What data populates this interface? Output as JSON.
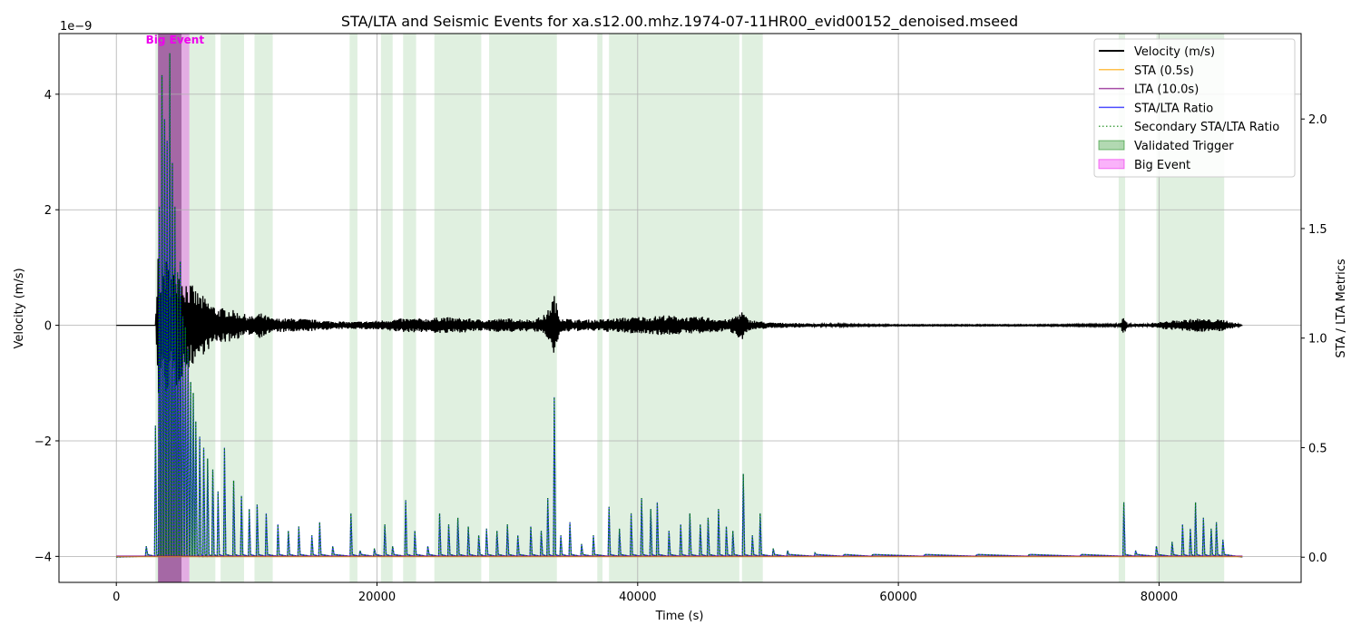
{
  "chart_data": {
    "type": "line",
    "title": "STA/LTA and Seismic Events for xa.s12.00.mhz.1974-07-11HR00_evid00152_denoised.mseed",
    "xlabel": "Time (s)",
    "ylabel_left": "Velocity (m/s)",
    "ylabel_right": "STA / LTA Metrics",
    "left_axis_multiplier": "1e−9",
    "xlim": [
      -4400,
      90900
    ],
    "ylim_left": [
      -4.45,
      5.05
    ],
    "ylim_right": [
      -0.115,
      2.39
    ],
    "x_ticks": [
      0,
      20000,
      40000,
      60000,
      80000
    ],
    "x_tick_labels": [
      "0",
      "20000",
      "40000",
      "60000",
      "80000"
    ],
    "y_ticks_left": [
      -4,
      -2,
      0,
      2,
      4
    ],
    "y_tick_labels_left": [
      "−4",
      "−2",
      "0",
      "2",
      "4"
    ],
    "y_ticks_right": [
      0.0,
      0.5,
      1.0,
      1.5,
      2.0
    ],
    "y_tick_labels_right": [
      "0.0",
      "0.5",
      "1.0",
      "1.5",
      "2.0"
    ],
    "grid": true,
    "legend_position": "top-right",
    "annotation": {
      "text": "Big Event",
      "x": 4500,
      "color": "#ee00ee"
    },
    "series": [
      {
        "name": "Velocity (m/s)",
        "color": "#000000",
        "style": "solid",
        "axis": "left"
      },
      {
        "name": "STA (0.5s)",
        "color": "#ffa500",
        "style": "solid",
        "axis": "right"
      },
      {
        "name": "LTA (10.0s)",
        "color": "#800080",
        "style": "solid",
        "axis": "right"
      },
      {
        "name": "STA/LTA Ratio",
        "color": "#0000ff",
        "style": "solid",
        "axis": "right"
      },
      {
        "name": "Secondary STA/LTA Ratio",
        "color": "#008000",
        "style": "dotted",
        "axis": "right"
      },
      {
        "name": "Validated Trigger",
        "color": "#008000",
        "style": "fill",
        "axis": "right"
      },
      {
        "name": "Big Event",
        "color": "#ee00ee",
        "style": "fill",
        "axis": "right"
      }
    ],
    "velocity_envelope": {
      "x": [
        0,
        3000,
        3200,
        3500,
        3800,
        4200,
        4600,
        5000,
        5400,
        5800,
        6200,
        6700,
        7200,
        7800,
        8500,
        9500,
        10500,
        11000,
        12000,
        14000,
        16000,
        18000,
        20000,
        22000,
        24000,
        25000,
        26000,
        27000,
        28000,
        30000,
        32000,
        33000,
        33600,
        34000,
        35000,
        37000,
        38000,
        40000,
        41000,
        42000,
        43000,
        44000,
        45000,
        46000,
        47000,
        48000,
        48500,
        50000,
        52000,
        55000,
        60000,
        70000,
        77000,
        77300,
        77600,
        79000,
        80500,
        82000,
        83000,
        84000,
        85000,
        86400
      ],
      "amp": [
        0.0,
        0.0,
        1.3,
        1.0,
        1.2,
        1.0,
        1.1,
        0.9,
        0.8,
        0.7,
        0.6,
        0.5,
        0.4,
        0.3,
        0.3,
        0.22,
        0.15,
        0.22,
        0.12,
        0.12,
        0.08,
        0.06,
        0.08,
        0.12,
        0.12,
        0.15,
        0.13,
        0.12,
        0.1,
        0.12,
        0.1,
        0.2,
        0.55,
        0.15,
        0.1,
        0.1,
        0.12,
        0.15,
        0.15,
        0.18,
        0.16,
        0.14,
        0.15,
        0.12,
        0.1,
        0.25,
        0.1,
        0.05,
        0.04,
        0.02,
        0.01,
        0.01,
        0.02,
        0.18,
        0.02,
        0.03,
        0.07,
        0.1,
        0.12,
        0.1,
        0.1,
        0.0
      ]
    },
    "ratio_peaks": {
      "x": [
        2300,
        3000,
        3300,
        3500,
        3700,
        3900,
        4100,
        4300,
        4500,
        4700,
        4900,
        5100,
        5300,
        5500,
        5700,
        5900,
        6100,
        6400,
        6700,
        7000,
        7400,
        7800,
        8300,
        9000,
        9600,
        10200,
        10800,
        11500,
        12400,
        13200,
        14000,
        15000,
        15600,
        16600,
        18000,
        18700,
        19800,
        20600,
        21200,
        22200,
        22900,
        23900,
        24800,
        25500,
        26200,
        27000,
        27800,
        28400,
        29200,
        30000,
        30800,
        31800,
        32600,
        33100,
        33600,
        34100,
        34800,
        35700,
        36600,
        37800,
        38600,
        39500,
        40300,
        41000,
        41500,
        42400,
        43300,
        44000,
        44800,
        45400,
        46200,
        46800,
        47300,
        48100,
        48800,
        49400,
        50400,
        51500,
        53600,
        55800,
        58000,
        62000,
        66000,
        70000,
        74000,
        77300,
        78200,
        79800,
        81000,
        81800,
        82400,
        82800,
        83400,
        84000,
        84400,
        84900
      ],
      "y": [
        0.05,
        0.6,
        1.6,
        2.2,
        2.0,
        1.9,
        2.3,
        1.8,
        1.6,
        1.3,
        1.35,
        1.1,
        1.05,
        0.95,
        0.8,
        0.75,
        0.62,
        0.55,
        0.5,
        0.45,
        0.4,
        0.3,
        0.5,
        0.35,
        0.28,
        0.22,
        0.24,
        0.2,
        0.15,
        0.12,
        0.14,
        0.1,
        0.16,
        0.05,
        0.2,
        0.03,
        0.04,
        0.15,
        0.05,
        0.26,
        0.12,
        0.05,
        0.2,
        0.15,
        0.18,
        0.14,
        0.1,
        0.13,
        0.12,
        0.15,
        0.1,
        0.14,
        0.12,
        0.27,
        0.73,
        0.1,
        0.16,
        0.06,
        0.1,
        0.23,
        0.13,
        0.2,
        0.27,
        0.22,
        0.25,
        0.12,
        0.15,
        0.2,
        0.15,
        0.18,
        0.22,
        0.14,
        0.12,
        0.38,
        0.1,
        0.2,
        0.04,
        0.03,
        0.02,
        0.01,
        0.01,
        0.01,
        0.01,
        0.01,
        0.01,
        0.25,
        0.03,
        0.05,
        0.07,
        0.15,
        0.13,
        0.25,
        0.18,
        0.13,
        0.16,
        0.08
      ]
    },
    "trigger_regions": [
      [
        3000,
        5200
      ],
      [
        5200,
        7600
      ],
      [
        8000,
        9800
      ],
      [
        10600,
        12000
      ],
      [
        17900,
        18500
      ],
      [
        20300,
        21200
      ],
      [
        22000,
        23000
      ],
      [
        24400,
        28000
      ],
      [
        28600,
        33800
      ],
      [
        36900,
        37300
      ],
      [
        37800,
        47800
      ],
      [
        48000,
        49600
      ],
      [
        76900,
        77400
      ],
      [
        79800,
        85000
      ]
    ],
    "big_event_range": [
      3200,
      5600
    ]
  }
}
